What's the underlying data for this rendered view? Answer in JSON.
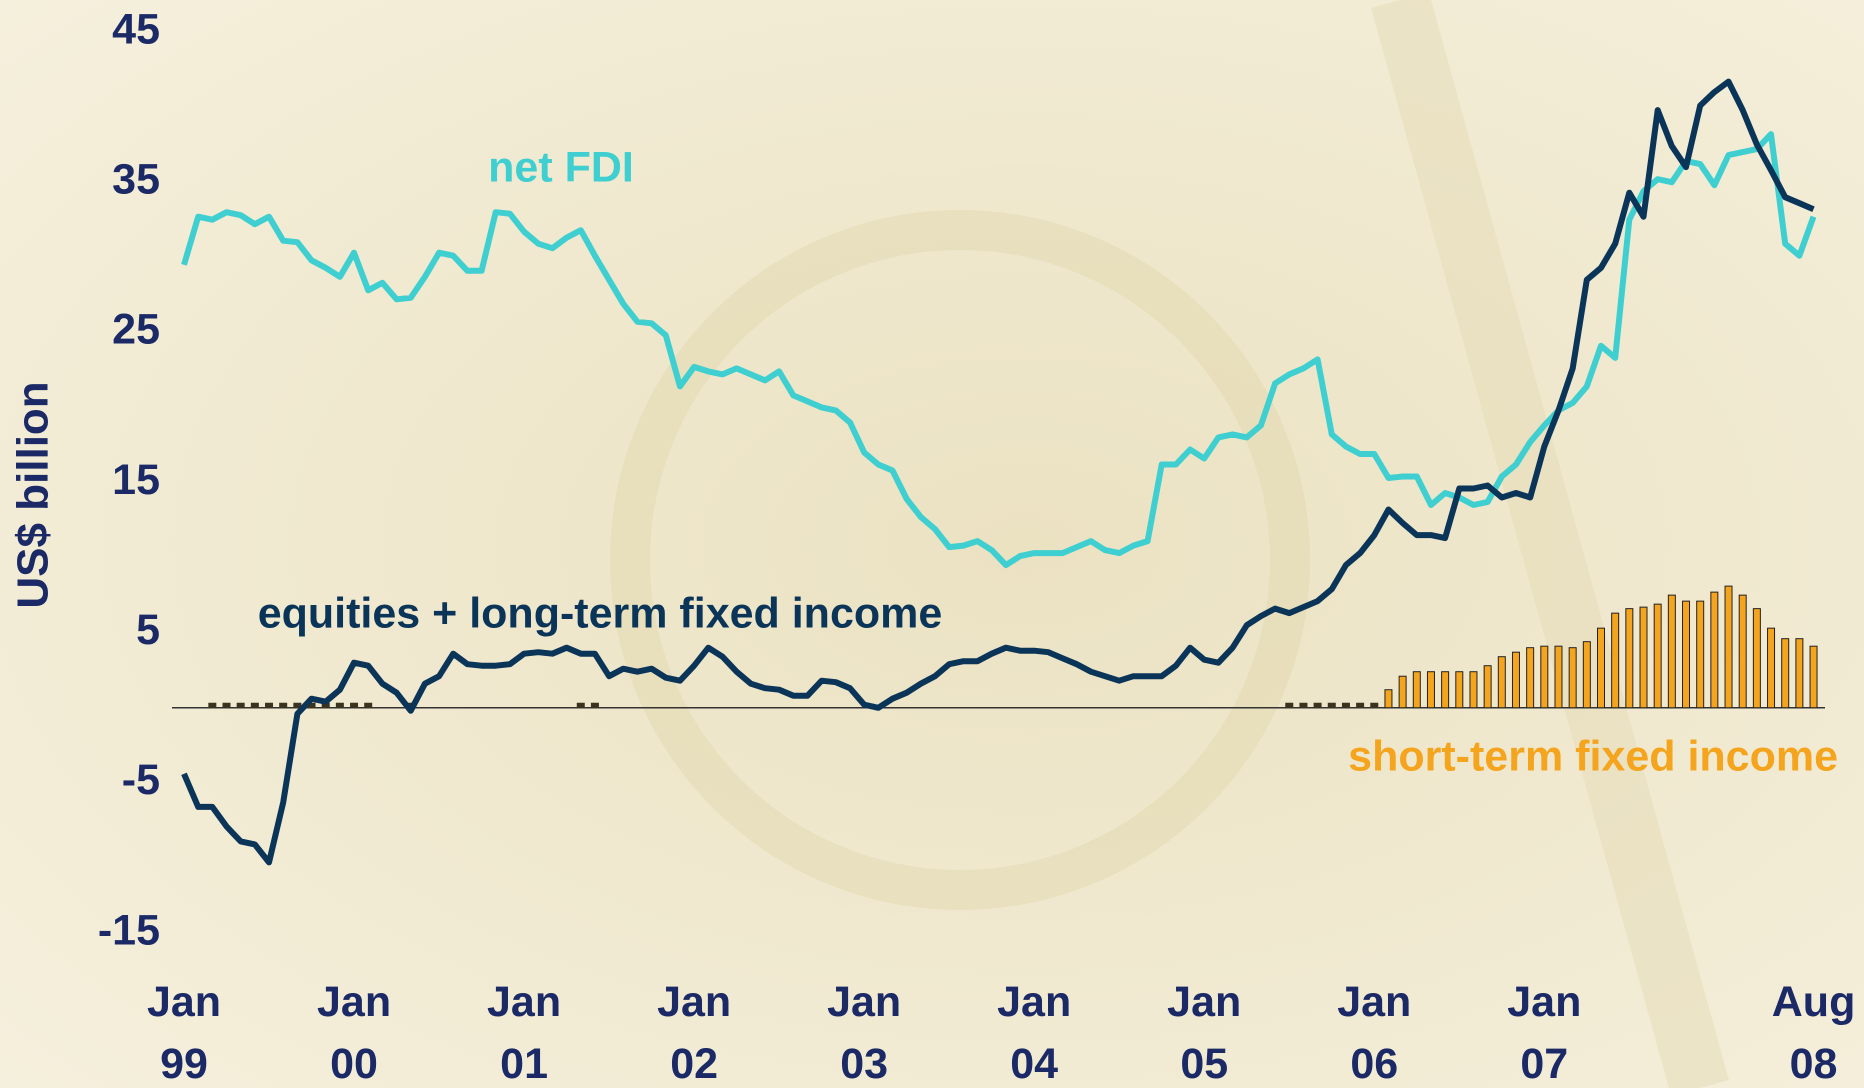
{
  "chart_data": {
    "type": "line",
    "ylabel": "US$ billion",
    "ylim": [
      -15,
      45
    ],
    "yticks": [
      45,
      35,
      25,
      15,
      5,
      -5,
      -15
    ],
    "categories": [
      "Jan 99",
      null,
      null,
      null,
      null,
      null,
      null,
      null,
      null,
      null,
      null,
      null,
      "Jan 00",
      null,
      null,
      null,
      null,
      null,
      null,
      null,
      null,
      null,
      null,
      null,
      "Jan 01",
      null,
      null,
      null,
      null,
      null,
      null,
      null,
      null,
      null,
      null,
      null,
      "Jan 02",
      null,
      null,
      null,
      null,
      null,
      null,
      null,
      null,
      null,
      null,
      null,
      "Jan 03",
      null,
      null,
      null,
      null,
      null,
      null,
      null,
      null,
      null,
      null,
      null,
      "Jan 04",
      null,
      null,
      null,
      null,
      null,
      null,
      null,
      null,
      null,
      null,
      null,
      "Jan 05",
      null,
      null,
      null,
      null,
      null,
      null,
      null,
      null,
      null,
      null,
      null,
      "Jan 06",
      null,
      null,
      null,
      null,
      null,
      null,
      null,
      null,
      null,
      null,
      null,
      "Jan 07",
      null,
      null,
      null,
      null,
      null,
      null,
      null,
      null,
      null,
      null,
      null,
      null,
      null,
      null,
      null,
      null,
      null,
      null,
      "Aug 08"
    ],
    "series": [
      {
        "name": "net FDI",
        "type": "line",
        "color": "#3fcfd0",
        "values": [
          29.5,
          32.7,
          32.5,
          33,
          32.8,
          32.2,
          32.7,
          31.1,
          31,
          29.8,
          29.3,
          28.7,
          30.3,
          27.8,
          28.3,
          27.2,
          27.3,
          28.7,
          30.3,
          30.1,
          29.1,
          29.1,
          33,
          32.9,
          31.7,
          30.9,
          30.6,
          31.3,
          31.8,
          30.1,
          28.5,
          26.9,
          25.7,
          25.6,
          24.8,
          21.4,
          22.7,
          22.4,
          22.2,
          22.6,
          22.2,
          21.8,
          22.4,
          20.8,
          20.4,
          20,
          19.8,
          19,
          17,
          16.2,
          15.8,
          13.9,
          12.7,
          11.9,
          10.7,
          10.8,
          11.1,
          10.5,
          9.5,
          10.1,
          10.3,
          10.3,
          10.3,
          10.7,
          11.1,
          10.5,
          10.3,
          10.8,
          11.1,
          16.2,
          16.2,
          17.2,
          16.6,
          18,
          18.2,
          18,
          18.8,
          21.6,
          22.2,
          22.6,
          23.2,
          18.2,
          17.4,
          16.9,
          16.9,
          15.3,
          15.4,
          15.4,
          13.5,
          14.3,
          14,
          13.5,
          13.7,
          15.4,
          16.2,
          17.7,
          18.8,
          19.8,
          20.3,
          21.4,
          24.1,
          23.3,
          32.5,
          34.4,
          35.2,
          35,
          36.4,
          36.2,
          34.8,
          36.8,
          37,
          37.2,
          38.2,
          30.9,
          30.1,
          32.7
        ]
      },
      {
        "name": "equities + long-term fixed income",
        "type": "line",
        "color": "#0b3558",
        "values": [
          -4.4,
          -6.6,
          -6.6,
          -7.9,
          -8.9,
          -9.1,
          -10.3,
          -6.3,
          -0.4,
          0.6,
          0.4,
          1.2,
          3,
          2.8,
          1.6,
          1,
          -0.2,
          1.6,
          2.1,
          3.6,
          2.9,
          2.8,
          2.8,
          2.9,
          3.6,
          3.7,
          3.6,
          4,
          3.6,
          3.6,
          2.1,
          2.6,
          2.4,
          2.6,
          2,
          1.8,
          2.8,
          4,
          3.4,
          2.4,
          1.6,
          1.3,
          1.2,
          0.8,
          0.8,
          1.8,
          1.7,
          1.3,
          0.2,
          0,
          0.6,
          1,
          1.6,
          2.1,
          2.9,
          3.1,
          3.1,
          3.6,
          4,
          3.8,
          3.8,
          3.7,
          3.3,
          2.9,
          2.4,
          2.1,
          1.8,
          2.1,
          2.1,
          2.1,
          2.8,
          4,
          3.2,
          3,
          4,
          5.5,
          6.1,
          6.6,
          6.3,
          6.7,
          7.1,
          7.9,
          9.5,
          10.3,
          11.5,
          13.2,
          12.3,
          11.5,
          11.5,
          11.3,
          14.6,
          14.6,
          14.8,
          14,
          14.3,
          14,
          17.4,
          19.8,
          22.6,
          28.5,
          29.3,
          30.9,
          34.3,
          32.7,
          39.8,
          37.4,
          36,
          40.1,
          41,
          41.7,
          39.8,
          37.5,
          35.8,
          34,
          33.6,
          33.2
        ]
      },
      {
        "name": "short-term fixed income",
        "type": "bar",
        "color": "#f5a41d",
        "values": [
          null,
          null,
          0.3,
          0.3,
          0.3,
          0.3,
          0.3,
          0.3,
          0.3,
          0.3,
          0.3,
          0.3,
          0.3,
          0.3,
          null,
          null,
          0.3,
          null,
          null,
          null,
          null,
          null,
          null,
          null,
          null,
          null,
          null,
          null,
          0.3,
          0.3,
          null,
          null,
          null,
          null,
          null,
          null,
          null,
          null,
          null,
          null,
          null,
          null,
          null,
          null,
          null,
          null,
          null,
          null,
          null,
          null,
          null,
          null,
          null,
          null,
          null,
          null,
          null,
          null,
          null,
          null,
          null,
          null,
          null,
          null,
          null,
          null,
          null,
          null,
          null,
          null,
          null,
          null,
          null,
          null,
          null,
          null,
          null,
          null,
          0.3,
          0.3,
          0.3,
          0.3,
          0.3,
          0.3,
          0.3,
          1.2,
          2.1,
          2.4,
          2.4,
          2.4,
          2.4,
          2.4,
          2.8,
          3.4,
          3.7,
          4,
          4.1,
          4.1,
          4,
          4.4,
          5.3,
          6.3,
          6.6,
          6.7,
          6.9,
          7.5,
          7.1,
          7.1,
          7.7,
          8.1,
          7.5,
          6.6,
          5.3,
          4.6,
          4.6,
          4.1
        ]
      }
    ]
  }
}
